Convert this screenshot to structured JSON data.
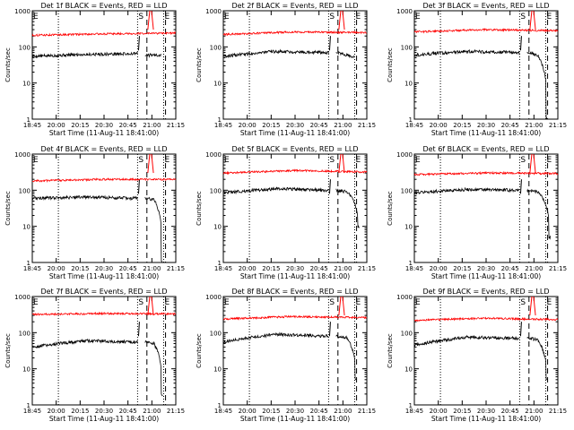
{
  "colors": {
    "events": "#000000",
    "lld": "#ff0000",
    "axis": "#000000"
  },
  "shared": {
    "ylabel": "Counts/sec",
    "xlabel": "Start Time (11-Aug-11 18:41:00)",
    "x_ticks": [
      "18:45",
      "20:00",
      "20:15",
      "20:30",
      "20:45",
      "21:00",
      "21:15"
    ],
    "y_ticks": [
      "1",
      "10",
      "100",
      "1000"
    ],
    "event_markers": [
      {
        "label": "E",
        "time_min": 0
      },
      {
        "label": "S",
        "time_min": 113
      },
      {
        "label": "E",
        "time_min": 141
      }
    ],
    "dotted_lines_min": [
      28,
      113,
      141
    ],
    "dashed_lines_min": [
      123,
      143
    ],
    "flare_min": 127
  },
  "chart_data": [
    {
      "type": "line",
      "title": "Det 1f BLACK = Events, RED = LLD",
      "xlim_min": [
        0,
        154
      ],
      "ylim": [
        1,
        1000
      ],
      "yscale": "log",
      "series": [
        {
          "name": "Events",
          "color": "#000000",
          "values_by_segment": [
            [
              0,
              113,
              55,
              62,
              65
            ],
            [
              121,
              138,
              58,
              60,
              60
            ]
          ]
        },
        {
          "name": "LLD",
          "color": "#ff0000",
          "values_by_segment": [
            [
              0,
              154,
              210,
              230,
              240
            ]
          ]
        }
      ]
    },
    {
      "type": "line",
      "title": "Det 2f BLACK = Events, RED = LLD",
      "xlim_min": [
        0,
        154
      ],
      "ylim": [
        1,
        1000
      ],
      "yscale": "log",
      "series": [
        {
          "name": "Events",
          "color": "#000000",
          "values_by_segment": [
            [
              0,
              113,
              55,
              75,
              70
            ],
            [
              121,
              140,
              70,
              60,
              55
            ]
          ]
        },
        {
          "name": "LLD",
          "color": "#ff0000",
          "values_by_segment": [
            [
              0,
              154,
              220,
              260,
              250
            ]
          ]
        }
      ]
    },
    {
      "type": "line",
      "title": "Det 3f BLACK = Events, RED = LLD",
      "xlim_min": [
        0,
        154
      ],
      "ylim": [
        1,
        1000
      ],
      "yscale": "log",
      "series": [
        {
          "name": "Events",
          "color": "#000000",
          "values_by_segment": [
            [
              0,
              113,
              60,
              75,
              70
            ],
            [
              121,
              143,
              70,
              60,
              1
            ]
          ]
        },
        {
          "name": "LLD",
          "color": "#ff0000",
          "values_by_segment": [
            [
              0,
              154,
              260,
              300,
              280
            ]
          ]
        }
      ]
    },
    {
      "type": "line",
      "title": "Det 4f BLACK = Events, RED = LLD",
      "xlim_min": [
        0,
        154
      ],
      "ylim": [
        1,
        1000
      ],
      "yscale": "log",
      "series": [
        {
          "name": "Events",
          "color": "#000000",
          "values_by_segment": [
            [
              0,
              113,
              60,
              65,
              60
            ],
            [
              121,
              140,
              60,
              55,
              1
            ]
          ]
        },
        {
          "name": "LLD",
          "color": "#ff0000",
          "values_by_segment": [
            [
              0,
              154,
              180,
              200,
              200
            ]
          ]
        }
      ]
    },
    {
      "type": "line",
      "title": "Det 5f BLACK = Events, RED = LLD",
      "xlim_min": [
        0,
        154
      ],
      "ylim": [
        1,
        1000
      ],
      "yscale": "log",
      "series": [
        {
          "name": "Events",
          "color": "#000000",
          "values_by_segment": [
            [
              0,
              113,
              85,
              110,
              100
            ],
            [
              121,
              146,
              100,
              90,
              10
            ]
          ]
        },
        {
          "name": "LLD",
          "color": "#ff0000",
          "values_by_segment": [
            [
              0,
              154,
              300,
              350,
              320
            ]
          ]
        }
      ]
    },
    {
      "type": "line",
      "title": "Det 6f BLACK = Events, RED = LLD",
      "xlim_min": [
        0,
        154
      ],
      "ylim": [
        1,
        1000
      ],
      "yscale": "log",
      "series": [
        {
          "name": "Events",
          "color": "#000000",
          "values_by_segment": [
            [
              0,
              113,
              85,
              105,
              100
            ],
            [
              121,
              146,
              100,
              90,
              5
            ]
          ]
        },
        {
          "name": "LLD",
          "color": "#ff0000",
          "values_by_segment": [
            [
              0,
              154,
              270,
              300,
              290
            ]
          ]
        }
      ]
    },
    {
      "type": "line",
      "title": "Det 7f BLACK = Events, RED = LLD",
      "xlim_min": [
        0,
        154
      ],
      "ylim": [
        1,
        1000
      ],
      "yscale": "log",
      "series": [
        {
          "name": "Events",
          "color": "#000000",
          "values_by_segment": [
            [
              0,
              113,
              40,
              60,
              55
            ],
            [
              121,
              140,
              55,
              50,
              2
            ]
          ]
        },
        {
          "name": "LLD",
          "color": "#ff0000",
          "values_by_segment": [
            [
              0,
              154,
              320,
              340,
              330
            ]
          ]
        }
      ]
    },
    {
      "type": "line",
      "title": "Det 8f BLACK = Events, RED = LLD",
      "xlim_min": [
        0,
        154
      ],
      "ylim": [
        1,
        1000
      ],
      "yscale": "log",
      "series": [
        {
          "name": "Events",
          "color": "#000000",
          "values_by_segment": [
            [
              0,
              113,
              55,
              90,
              80
            ],
            [
              121,
              143,
              80,
              75,
              5
            ]
          ]
        },
        {
          "name": "LLD",
          "color": "#ff0000",
          "values_by_segment": [
            [
              0,
              154,
              240,
              280,
              260
            ]
          ]
        }
      ]
    },
    {
      "type": "line",
      "title": "Det 9f BLACK = Events, RED = LLD",
      "xlim_min": [
        0,
        154
      ],
      "ylim": [
        1,
        1000
      ],
      "yscale": "log",
      "series": [
        {
          "name": "Events",
          "color": "#000000",
          "values_by_segment": [
            [
              0,
              113,
              45,
              75,
              70
            ],
            [
              121,
              143,
              70,
              65,
              5
            ]
          ]
        },
        {
          "name": "LLD",
          "color": "#ff0000",
          "values_by_segment": [
            [
              0,
              154,
              220,
              250,
              230
            ]
          ]
        }
      ]
    }
  ]
}
